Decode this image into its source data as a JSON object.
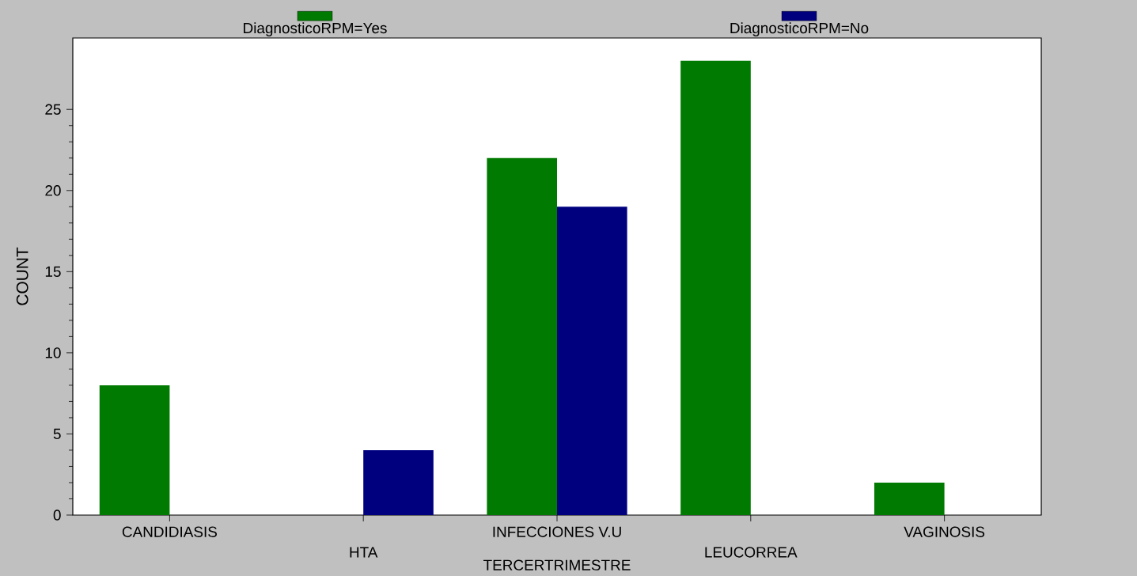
{
  "chart_data": {
    "type": "bar",
    "xlabel": "TERCERTRIMESTRE",
    "ylabel": "COUNT",
    "categories": [
      "CANDIDIASIS",
      "HTA",
      "INFECCIONES V.U",
      "LEUCORREA",
      "VAGINOSIS"
    ],
    "series": [
      {
        "name": "DiagnosticoRPM=Yes",
        "color": "#007a00",
        "values": [
          8,
          0,
          22,
          28,
          2
        ]
      },
      {
        "name": "DiagnosticoRPM=No",
        "color": "#00007f",
        "values": [
          0,
          4,
          19,
          0,
          0
        ]
      }
    ],
    "ylim": [
      0,
      29.4
    ],
    "yticks": [
      0,
      5,
      10,
      15,
      20,
      25
    ],
    "legend": "top"
  }
}
